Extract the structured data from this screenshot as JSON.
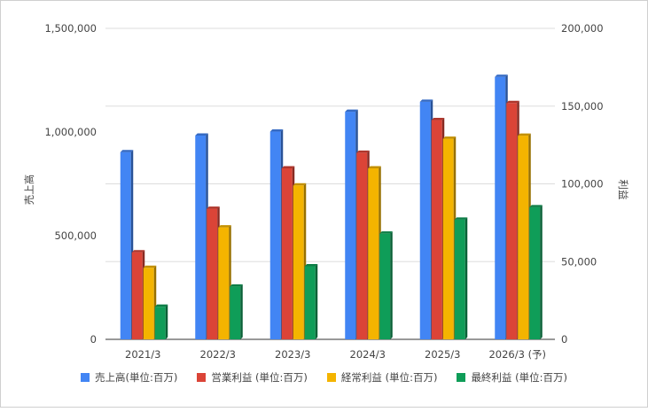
{
  "chart_data": {
    "type": "bar",
    "categories": [
      "2021/3",
      "2022/3",
      "2023/3",
      "2024/3",
      "2025/3",
      "2026/3 (予)"
    ],
    "left_axis": {
      "label": "売上高",
      "ticks": [
        "0",
        "500,000",
        "1,000,000",
        "1,500,000"
      ],
      "tick_values": [
        0,
        500000,
        1000000,
        1500000
      ],
      "ylim": [
        0,
        1500000
      ]
    },
    "right_axis": {
      "label": "利益",
      "ticks": [
        "0",
        "50,000",
        "100,000",
        "150,000",
        "200,000"
      ],
      "tick_values": [
        0,
        50000,
        100000,
        150000,
        200000
      ],
      "ylim": [
        0,
        200000
      ]
    },
    "series": [
      {
        "name": "売上高(単位:百万)",
        "axis": "left",
        "color": "#4285f4",
        "values": [
          903000,
          983000,
          1002000,
          1098000,
          1146000,
          1266000
        ]
      },
      {
        "name": "営業利益 (単位:百万)",
        "axis": "right",
        "color": "#db4437",
        "values": [
          56000,
          84000,
          110000,
          120000,
          141000,
          152000
        ]
      },
      {
        "name": "経常利益 (単位:百万)",
        "axis": "right",
        "color": "#f4b400",
        "values": [
          46000,
          72000,
          99000,
          110000,
          129000,
          131000
        ]
      },
      {
        "name": "最終利益 (単位:百万)",
        "axis": "right",
        "color": "#0f9d58",
        "values": [
          21000,
          34000,
          47000,
          68000,
          77000,
          85000
        ]
      }
    ],
    "grid": true,
    "legend_position": "bottom"
  }
}
